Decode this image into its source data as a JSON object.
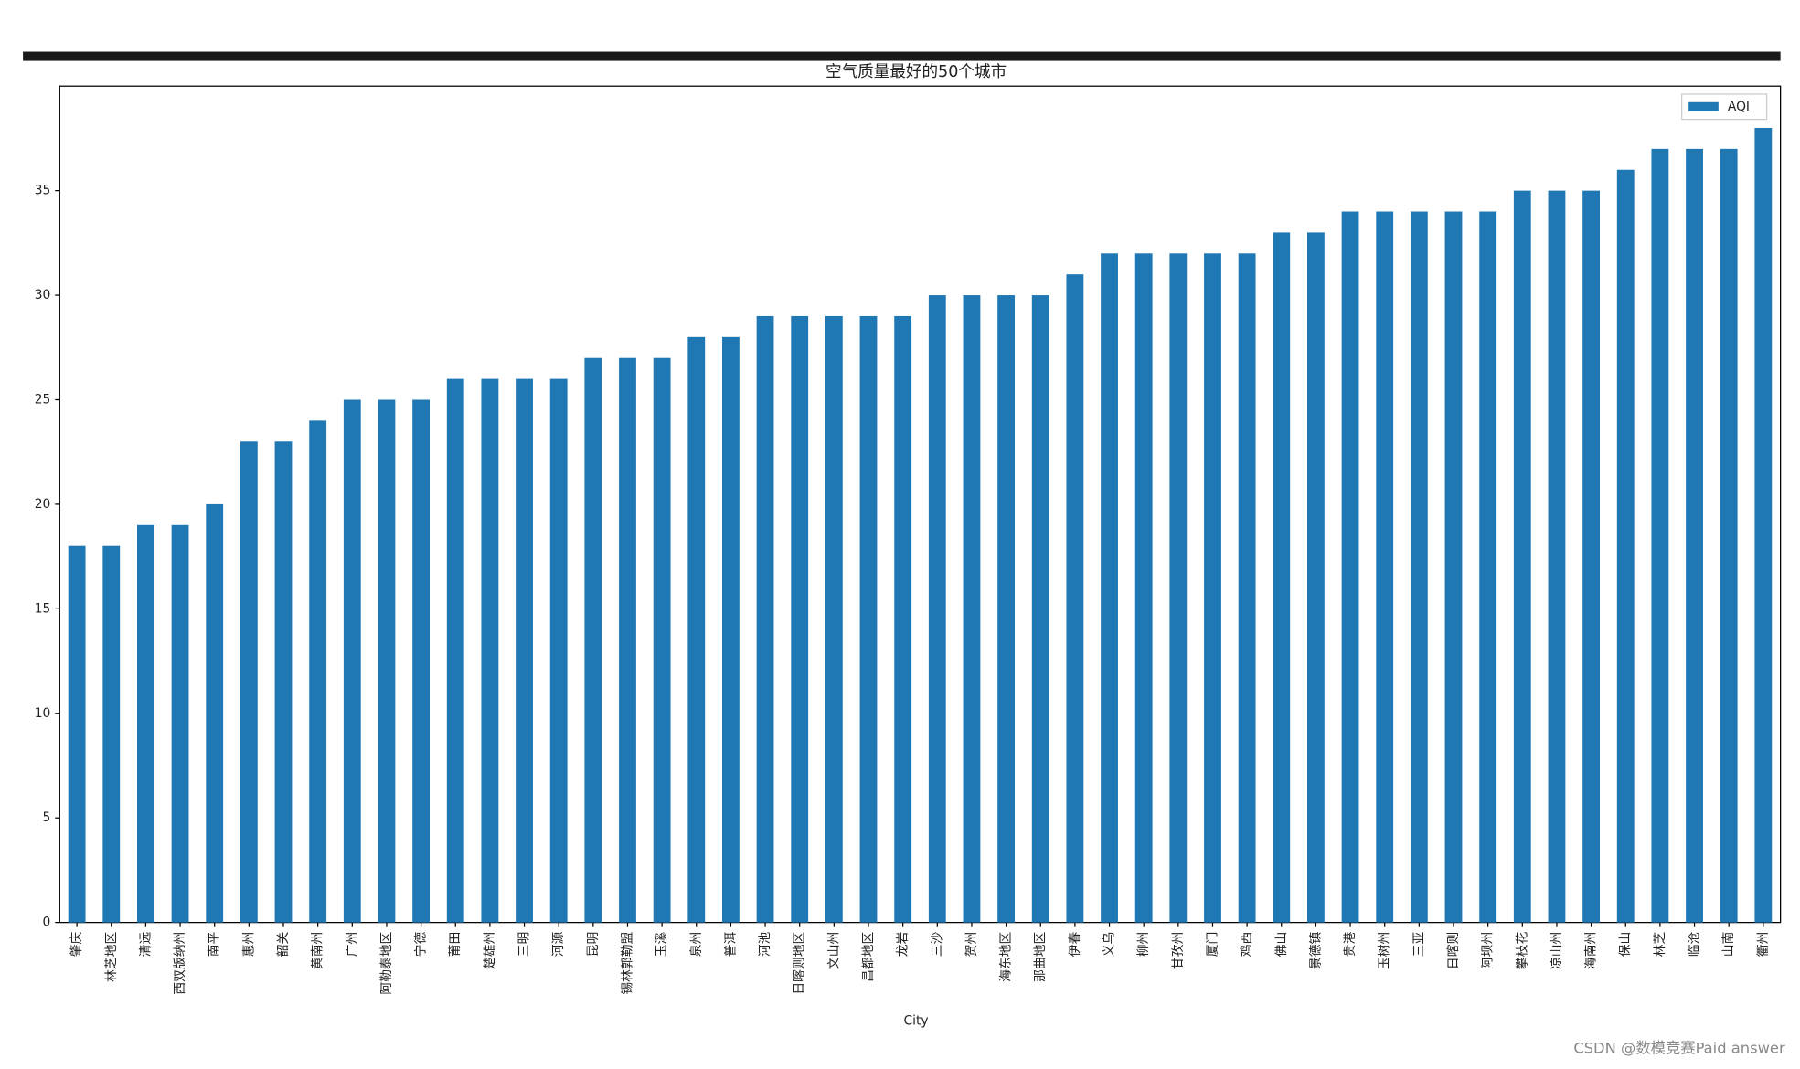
{
  "chart_data": {
    "type": "bar",
    "title": "空气质量最好的50个城市",
    "xlabel": "City",
    "legend": "upper right",
    "categories": [
      "肇庆",
      "林芝地区",
      "清远",
      "西双版纳州",
      "南平",
      "惠州",
      "韶关",
      "黄南州",
      "广州",
      "阿勒泰地区",
      "宁德",
      "莆田",
      "楚雄州",
      "三明",
      "河源",
      "昆明",
      "锡林郭勒盟",
      "玉溪",
      "泉州",
      "普洱",
      "河池",
      "日喀则地区",
      "文山州",
      "昌都地区",
      "龙岩",
      "三沙",
      "贺州",
      "海东地区",
      "那曲地区",
      "伊春",
      "义乌",
      "柳州",
      "甘孜州",
      "厦门",
      "鸡西",
      "佛山",
      "景德镇",
      "贵港",
      "玉树州",
      "三亚",
      "日喀则",
      "阿坝州",
      "攀枝花",
      "凉山州",
      "海南州",
      "保山",
      "林芝",
      "临沧",
      "山南",
      "衢州"
    ],
    "series": [
      {
        "name": "AQI",
        "color": "#1f77b4",
        "values": [
          18,
          18,
          19,
          19,
          20,
          23,
          23,
          24,
          25,
          25,
          25,
          26,
          26,
          26,
          26,
          27,
          27,
          27,
          28,
          28,
          29,
          29,
          29,
          29,
          29,
          30,
          30,
          30,
          30,
          31,
          32,
          32,
          32,
          32,
          32,
          33,
          33,
          34,
          34,
          34,
          34,
          34,
          35,
          35,
          35,
          36,
          37,
          37,
          37,
          38
        ]
      }
    ],
    "ylim": [
      0,
      40
    ],
    "yticks": [
      0,
      5,
      10,
      15,
      20,
      25,
      30,
      35
    ]
  },
  "watermark": "CSDN @数模竞赛Paid answer"
}
